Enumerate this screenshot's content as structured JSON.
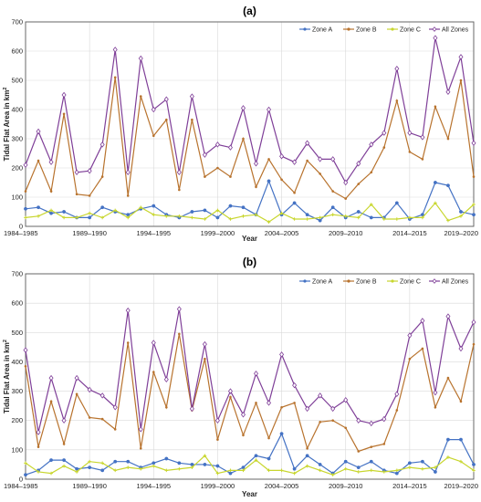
{
  "chart_data": [
    {
      "type": "line",
      "title": "(a)",
      "xlabel": "Year",
      "ylabel": "Tidal Flat Area in km²",
      "ylabel_main": "Tidal Flat Area in km",
      "ylabel_sup": "2",
      "xlim": [
        "1984–1985",
        "2019–2020"
      ],
      "ylim": [
        0,
        700
      ],
      "yticks": [
        0,
        100,
        200,
        300,
        400,
        500,
        600,
        700
      ],
      "x_tick_labels": [
        "1984–1985",
        "1989–1990",
        "1994–1995",
        "1999–2000",
        "2004–2005",
        "2009–2010",
        "2014–2015",
        "2019–2020"
      ],
      "grid": true,
      "legend_position": "top-right",
      "series": [
        {
          "name": "Zone A",
          "color": "#4472c4",
          "values": [
            60,
            65,
            45,
            50,
            30,
            30,
            65,
            50,
            40,
            60,
            70,
            40,
            30,
            50,
            55,
            30,
            70,
            65,
            40,
            155,
            40,
            80,
            40,
            20,
            65,
            30,
            50,
            30,
            30,
            80,
            25,
            40,
            150,
            140,
            50,
            40
          ]
        },
        {
          "name": "Zone B",
          "color": "#b8732e",
          "values": [
            120,
            225,
            120,
            385,
            110,
            105,
            170,
            510,
            105,
            445,
            310,
            365,
            125,
            365,
            170,
            200,
            170,
            300,
            135,
            230,
            160,
            115,
            225,
            180,
            120,
            95,
            145,
            185,
            270,
            430,
            255,
            230,
            410,
            300,
            500,
            170
          ]
        },
        {
          "name": "Zone C",
          "color": "#c8d62e",
          "values": [
            30,
            35,
            55,
            30,
            30,
            45,
            30,
            55,
            30,
            65,
            40,
            35,
            35,
            30,
            25,
            55,
            25,
            35,
            40,
            15,
            45,
            25,
            25,
            30,
            40,
            35,
            30,
            75,
            25,
            25,
            30,
            30,
            80,
            20,
            35,
            75
          ]
        },
        {
          "name": "All Zones",
          "color": "#7f3f98",
          "values": [
            210,
            325,
            220,
            450,
            185,
            190,
            280,
            605,
            185,
            575,
            400,
            435,
            185,
            445,
            245,
            280,
            270,
            405,
            215,
            400,
            240,
            220,
            285,
            230,
            230,
            150,
            215,
            280,
            320,
            540,
            320,
            305,
            645,
            460,
            580,
            285
          ]
        }
      ]
    },
    {
      "type": "line",
      "title": "(b)",
      "xlabel": "Year",
      "ylabel": "Tidal Flat Area in km²",
      "ylabel_main": "Tidal Flat Area in km",
      "ylabel_sup": "2",
      "xlim": [
        "1984–1985",
        "2019–2020"
      ],
      "ylim": [
        0,
        700
      ],
      "yticks": [
        0,
        100,
        200,
        300,
        400,
        500,
        600,
        700
      ],
      "x_tick_labels": [
        "1984–1985",
        "1989–1990",
        "1994–1995",
        "1999–2000",
        "2004–2005",
        "2009–2010",
        "2014–2015",
        "2019–2020"
      ],
      "grid": true,
      "legend_position": "top-right",
      "series": [
        {
          "name": "Zone A",
          "color": "#4472c4",
          "values": [
            15,
            30,
            65,
            65,
            35,
            40,
            30,
            60,
            60,
            40,
            55,
            70,
            55,
            50,
            50,
            45,
            20,
            40,
            80,
            70,
            155,
            35,
            80,
            50,
            20,
            60,
            40,
            60,
            30,
            20,
            55,
            60,
            25,
            135,
            135,
            50
          ]
        },
        {
          "name": "Zone B",
          "color": "#b8732e",
          "values": [
            385,
            110,
            265,
            120,
            290,
            210,
            205,
            170,
            465,
            105,
            365,
            245,
            495,
            235,
            410,
            135,
            280,
            150,
            260,
            140,
            245,
            260,
            105,
            195,
            200,
            175,
            95,
            110,
            120,
            235,
            410,
            445,
            245,
            345,
            265,
            460
          ]
        },
        {
          "name": "Zone C",
          "color": "#c8d62e",
          "values": [
            55,
            25,
            20,
            45,
            25,
            60,
            55,
            30,
            40,
            35,
            45,
            30,
            35,
            40,
            80,
            20,
            30,
            30,
            65,
            30,
            30,
            20,
            45,
            30,
            15,
            35,
            25,
            30,
            25,
            30,
            40,
            35,
            40,
            75,
            60,
            30
          ]
        },
        {
          "name": "All Zones",
          "color": "#7f3f98",
          "values": [
            440,
            160,
            345,
            200,
            345,
            305,
            285,
            245,
            575,
            170,
            465,
            340,
            580,
            240,
            460,
            200,
            300,
            220,
            360,
            260,
            425,
            320,
            240,
            285,
            240,
            270,
            200,
            190,
            205,
            290,
            490,
            540,
            295,
            555,
            445,
            535
          ]
        }
      ]
    }
  ]
}
